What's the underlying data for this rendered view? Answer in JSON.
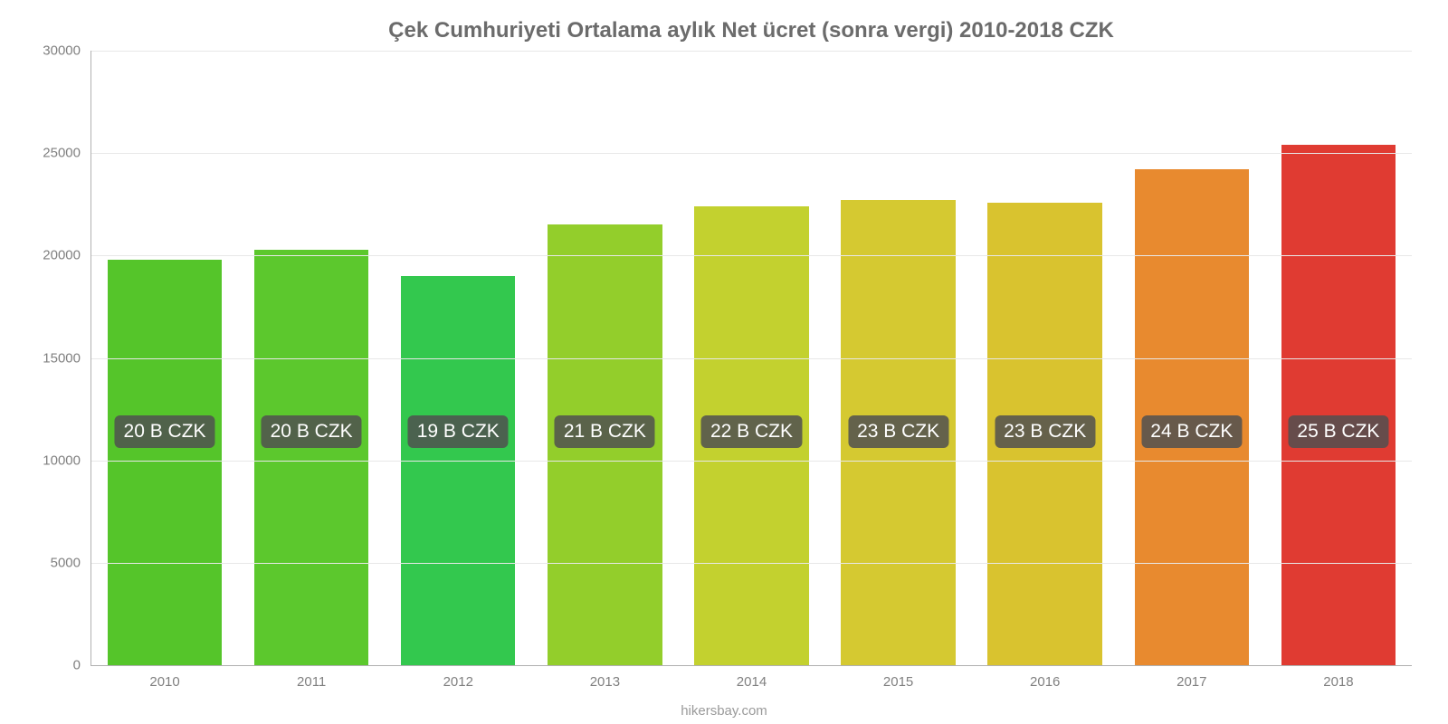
{
  "chart": {
    "type": "bar",
    "title": "Çek Cumhuriyeti Ortalama aylık Net ücret (sonra vergi) 2010-2018 CZK",
    "title_color": "#6b6b6b",
    "title_fontsize": 24,
    "categories": [
      "2010",
      "2011",
      "2012",
      "2013",
      "2014",
      "2015",
      "2016",
      "2017",
      "2018"
    ],
    "values": [
      19800,
      20300,
      19000,
      21500,
      22400,
      22700,
      22600,
      24200,
      25400
    ],
    "bar_labels": [
      "20 B CZK",
      "20 B CZK",
      "19 B CZK",
      "21 B CZK",
      "22 B CZK",
      "23 B CZK",
      "23 B CZK",
      "24 B CZK",
      "25 B CZK"
    ],
    "bar_colors": [
      "#55c52a",
      "#5cc82d",
      "#33c84e",
      "#93ce2b",
      "#c3d12f",
      "#d5c931",
      "#d9c32f",
      "#e88a2f",
      "#e03b32"
    ],
    "bar_width_pct": 78,
    "ylim": [
      0,
      30000
    ],
    "ytick_step": 5000,
    "ytick_labels": [
      "0",
      "5000",
      "10000",
      "15000",
      "20000",
      "25000",
      "30000"
    ],
    "grid_color": "#e8e8e8",
    "axis_color": "#b0b0b0",
    "tick_label_color": "#808080",
    "tick_label_fontsize": 15,
    "background_color": "#ffffff",
    "chip_bg": "rgba(80,80,80,0.85)",
    "chip_text_color": "#ffffff",
    "chip_fontsize": 21,
    "chip_y_value": 11400,
    "source_text": "hikersbay.com",
    "source_color": "#9a9a9a",
    "source_fontsize": 15
  }
}
